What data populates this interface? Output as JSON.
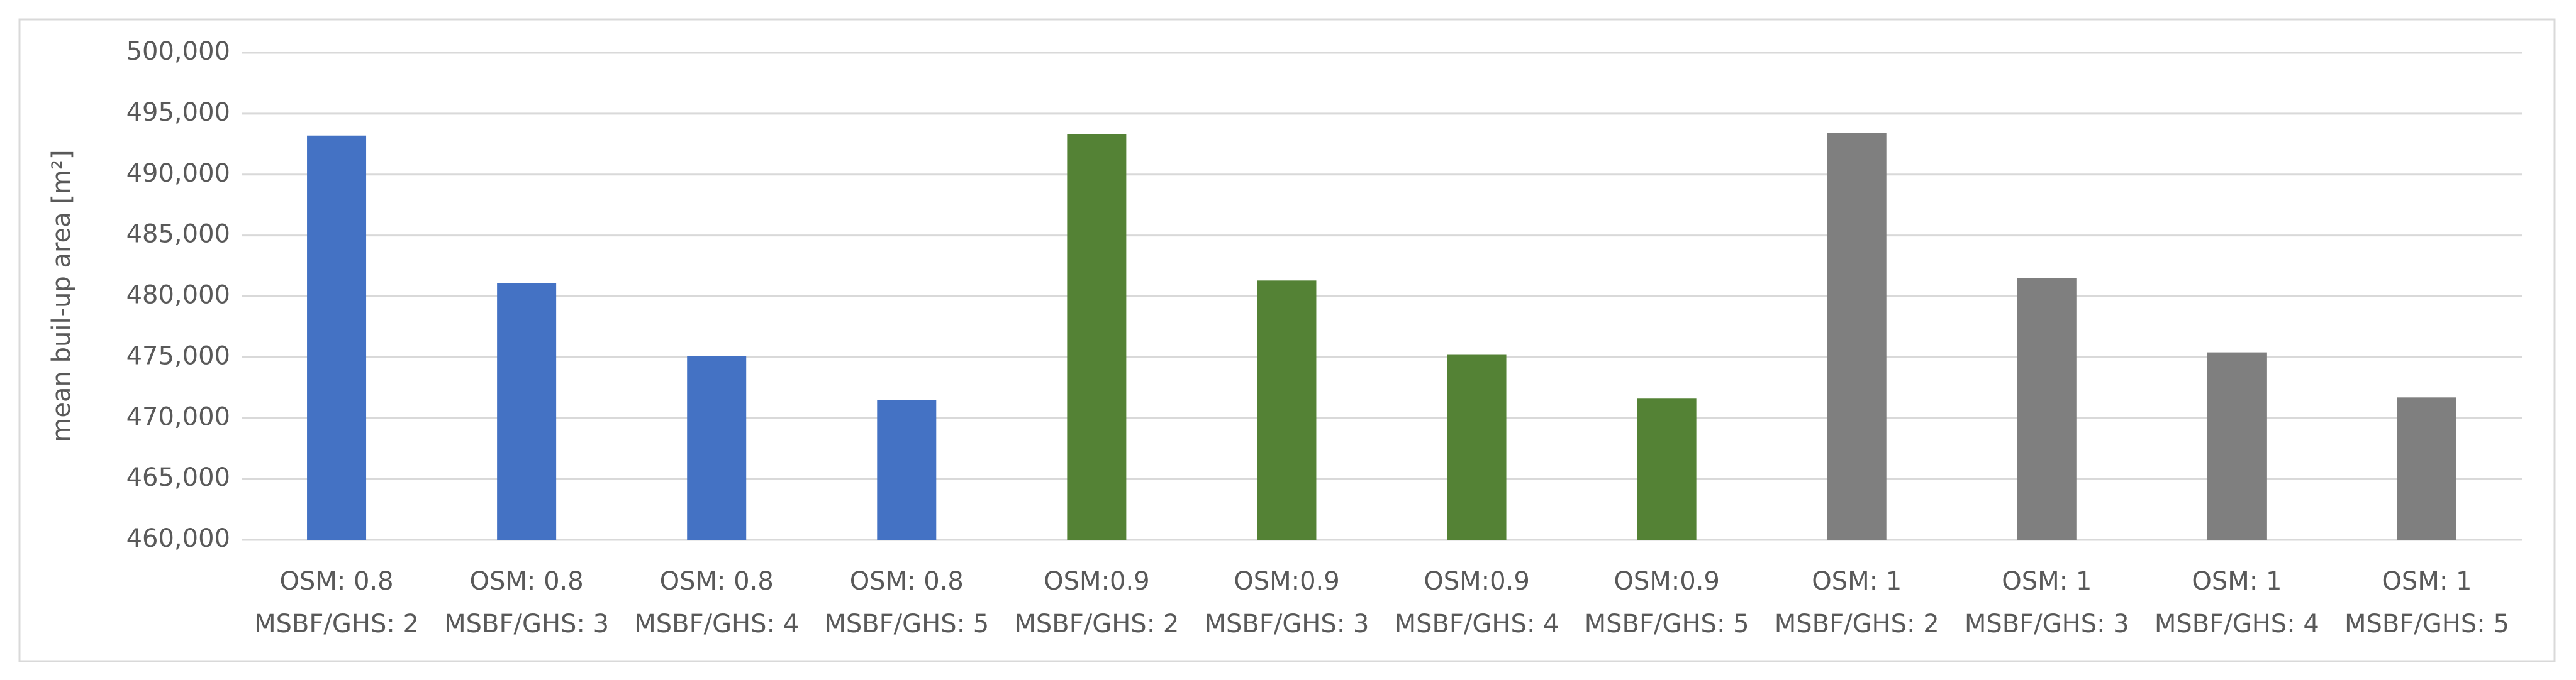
{
  "chart_data": {
    "type": "bar",
    "y_label": "mean buil-up area [m²]",
    "categories": [
      [
        "OSM: 0.8",
        "MSBF/GHS: 2"
      ],
      [
        "OSM: 0.8",
        "MSBF/GHS: 3"
      ],
      [
        "OSM: 0.8",
        "MSBF/GHS: 4"
      ],
      [
        "OSM: 0.8",
        "MSBF/GHS: 5"
      ],
      [
        "OSM:0.9",
        "MSBF/GHS: 2"
      ],
      [
        "OSM:0.9",
        "MSBF/GHS: 3"
      ],
      [
        "OSM:0.9",
        "MSBF/GHS: 4"
      ],
      [
        "OSM:0.9",
        "MSBF/GHS: 5"
      ],
      [
        "OSM: 1",
        "MSBF/GHS: 2"
      ],
      [
        "OSM: 1",
        "MSBF/GHS: 3"
      ],
      [
        "OSM: 1",
        "MSBF/GHS: 4"
      ],
      [
        "OSM: 1",
        "MSBF/GHS: 5"
      ]
    ],
    "values": [
      493200,
      481100,
      475100,
      471500,
      493300,
      481300,
      475200,
      471600,
      493400,
      481500,
      475400,
      471700
    ],
    "colors": [
      "#4472c4",
      "#4472c4",
      "#4472c4",
      "#4472c4",
      "#548235",
      "#548235",
      "#548235",
      "#548235",
      "#7f7f7f",
      "#7f7f7f",
      "#7f7f7f",
      "#7f7f7f"
    ],
    "ylim": [
      460000,
      500000
    ],
    "yticks": [
      {
        "value": 460000,
        "label": "460,000"
      },
      {
        "value": 465000,
        "label": "465,000"
      },
      {
        "value": 470000,
        "label": "470,000"
      },
      {
        "value": 475000,
        "label": "475,000"
      },
      {
        "value": 480000,
        "label": "480,000"
      },
      {
        "value": 485000,
        "label": "485,000"
      },
      {
        "value": 490000,
        "label": "490,000"
      },
      {
        "value": 495000,
        "label": "495,000"
      },
      {
        "value": 500000,
        "label": "500,000"
      }
    ],
    "grid": true
  }
}
